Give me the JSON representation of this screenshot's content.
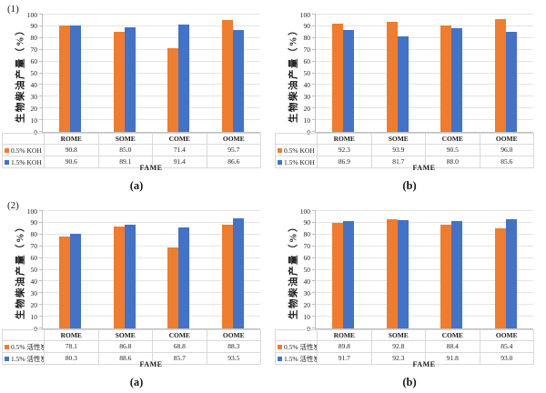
{
  "page": {
    "background": "#ffffff"
  },
  "colors": {
    "series1": "#ED7D31",
    "series2": "#4472C4",
    "gridline": "#E4E4E4",
    "axis": "#BFBFBF",
    "table_border": "#D9D9D9",
    "text": "#1a1a1a"
  },
  "chart_data": [
    {
      "type": "bar",
      "group_label": "(1)",
      "caption": "(a)",
      "ylabel": "生物柴油产量（%）",
      "xlabel": "FAME",
      "ylim": [
        0,
        100
      ],
      "ytick_step": 10,
      "grid": true,
      "legend_position": "table-left",
      "categories": [
        "ROME",
        "SOME",
        "COME",
        "OOME"
      ],
      "series": [
        {
          "name": "0.5% KOH",
          "color_key": "series1",
          "values": [
            90.8,
            85.0,
            71.4,
            95.7
          ]
        },
        {
          "name": "1.5% KOH",
          "color_key": "series2",
          "values": [
            90.6,
            89.1,
            91.4,
            86.6
          ]
        }
      ]
    },
    {
      "type": "bar",
      "group_label": "",
      "caption": "(b)",
      "ylabel": "生物柴油产量（%）",
      "xlabel": "FAME",
      "ylim": [
        0,
        100
      ],
      "ytick_step": 10,
      "grid": true,
      "legend_position": "table-left",
      "categories": [
        "ROME",
        "SOME",
        "COME",
        "OOME"
      ],
      "series": [
        {
          "name": "0.5% KOH",
          "color_key": "series1",
          "values": [
            92.3,
            93.9,
            90.5,
            96.0
          ]
        },
        {
          "name": "1.5% KOH",
          "color_key": "series2",
          "values": [
            86.9,
            81.7,
            88.0,
            85.6
          ]
        }
      ]
    },
    {
      "type": "bar",
      "group_label": "(2)",
      "caption": "(a)",
      "ylabel": "生物柴油产量（%）",
      "xlabel": "FAME",
      "ylim": [
        0,
        100
      ],
      "ytick_step": 10,
      "grid": true,
      "legend_position": "table-left",
      "categories": [
        "ROME",
        "SOME",
        "COME",
        "OOME"
      ],
      "series": [
        {
          "name": "0.5% 活性炭",
          "color_key": "series1",
          "values": [
            78.1,
            86.8,
            68.8,
            88.3
          ]
        },
        {
          "name": "1.5% 活性炭",
          "color_key": "series2",
          "values": [
            80.3,
            88.6,
            85.7,
            93.5
          ]
        }
      ]
    },
    {
      "type": "bar",
      "group_label": "",
      "caption": "(b)",
      "ylabel": "生物柴油产量（%）",
      "xlabel": "FAME",
      "ylim": [
        0,
        100
      ],
      "ytick_step": 10,
      "grid": true,
      "legend_position": "table-left",
      "categories": [
        "ROME",
        "SOME",
        "COME",
        "OOME"
      ],
      "series": [
        {
          "name": "0.5% 活性炭",
          "color_key": "series1",
          "values": [
            89.8,
            92.8,
            88.4,
            85.4
          ]
        },
        {
          "name": "1.5% 活性炭",
          "color_key": "series2",
          "values": [
            91.7,
            92.3,
            91.8,
            93.0
          ]
        }
      ]
    }
  ]
}
